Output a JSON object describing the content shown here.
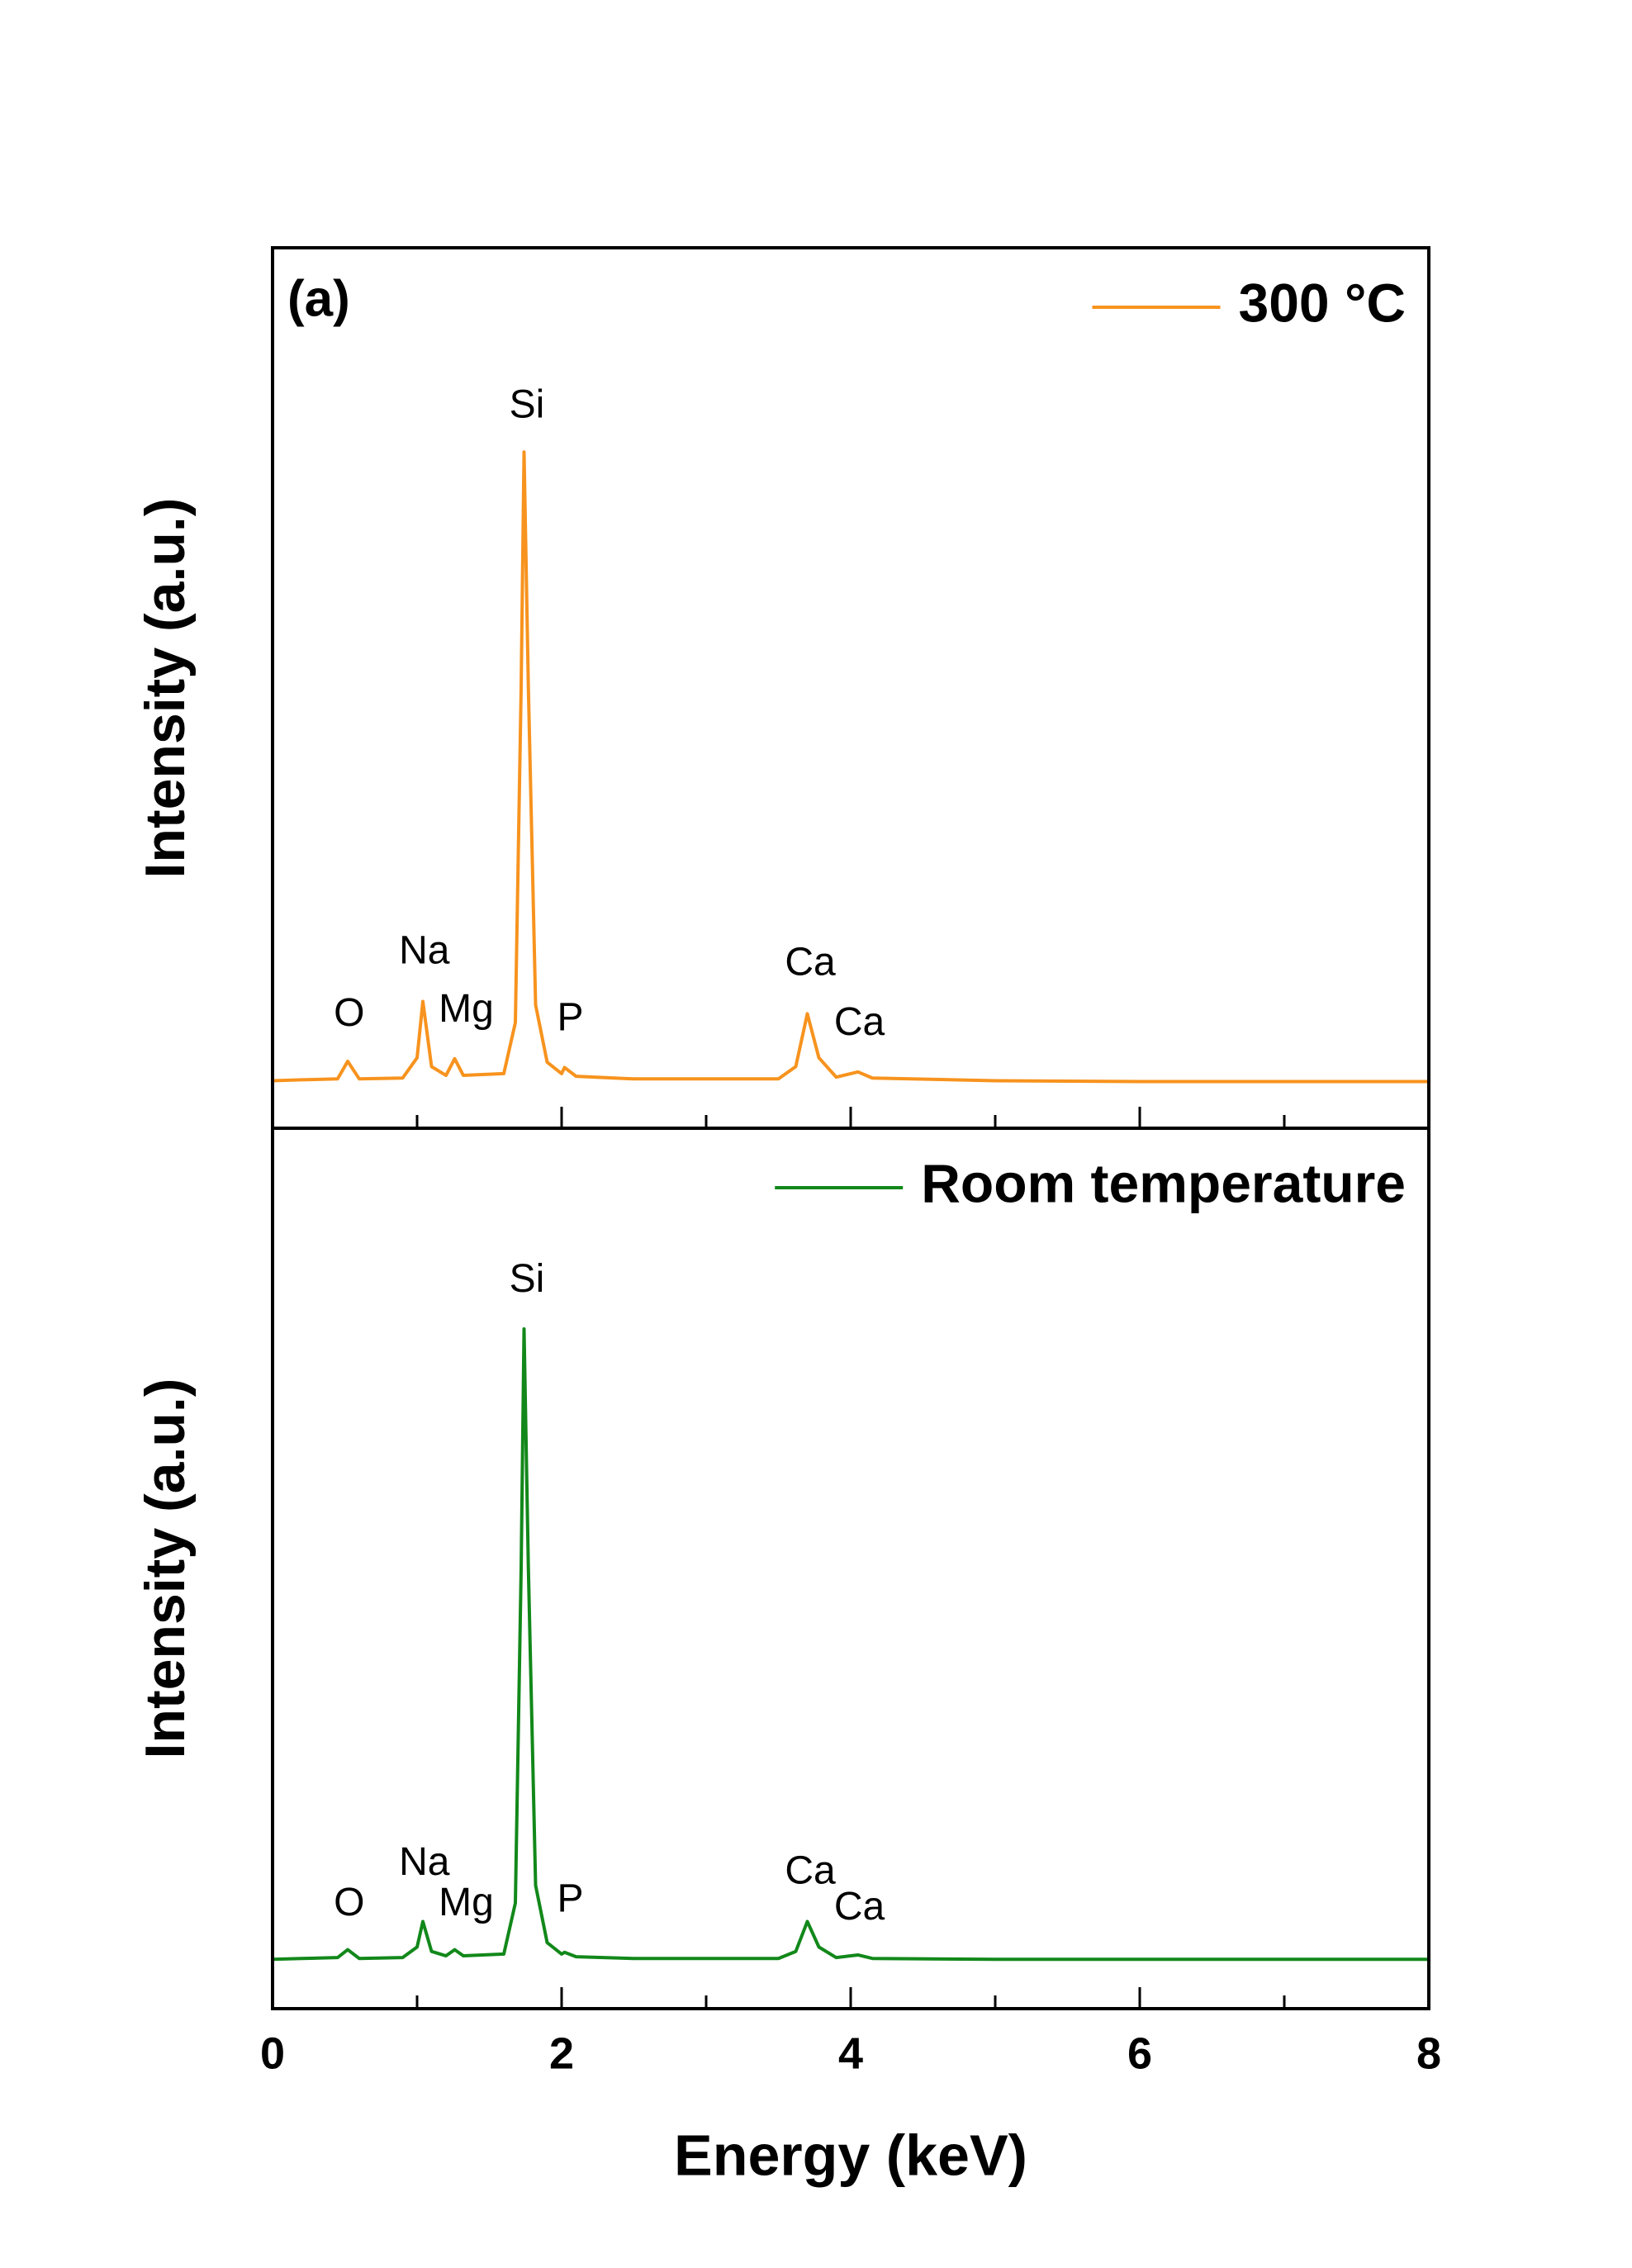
{
  "chart_data": [
    {
      "type": "line",
      "panel_label": "(a)",
      "ylabel": "Intensity (a.u.)",
      "xlim": [
        0,
        8
      ],
      "ylim": [
        0,
        100
      ],
      "xticks": [
        0,
        2,
        4,
        6,
        8
      ],
      "xminorticks": [
        1,
        3,
        5,
        7
      ],
      "legend": "upper right",
      "x": [
        0,
        0.2,
        0.45,
        0.52,
        0.6,
        0.9,
        1.0,
        1.04,
        1.1,
        1.2,
        1.26,
        1.32,
        1.6,
        1.68,
        1.72,
        1.74,
        1.77,
        1.82,
        1.9,
        2.0,
        2.02,
        2.1,
        2.5,
        3.5,
        3.62,
        3.7,
        3.78,
        3.9,
        4.0,
        4.05,
        4.15,
        5,
        6,
        7,
        8
      ],
      "series": [
        {
          "name": "300 °C",
          "color": "#f7931e",
          "values": [
            5.4,
            5.5,
            5.6,
            7.6,
            5.6,
            5.7,
            8,
            14.4,
            7,
            6,
            7.9,
            6,
            6.2,
            12,
            50,
            76.8,
            50,
            14,
            7.5,
            6.2,
            6.9,
            5.9,
            5.6,
            5.6,
            7,
            13,
            8,
            5.8,
            6.2,
            6.4,
            5.7,
            5.4,
            5.3,
            5.3,
            5.3
          ]
        }
      ],
      "annotations": [
        {
          "text": "O",
          "x": 0.53,
          "y": 12.8
        },
        {
          "text": "Na",
          "x": 1.05,
          "y": 19.9
        },
        {
          "text": "Mg",
          "x": 1.34,
          "y": 13.3
        },
        {
          "text": "Si",
          "x": 1.76,
          "y": 81.9
        },
        {
          "text": "P",
          "x": 2.06,
          "y": 12.3
        },
        {
          "text": "Ca",
          "x": 3.72,
          "y": 18.6
        },
        {
          "text": "Ca",
          "x": 4.06,
          "y": 11.8
        }
      ]
    },
    {
      "type": "line",
      "ylabel": "Intensity (a.u.)",
      "xlabel": "Energy (keV)",
      "xlim": [
        0,
        8
      ],
      "ylim": [
        0,
        100
      ],
      "xticks": [
        0,
        2,
        4,
        6,
        8
      ],
      "xminorticks": [
        1,
        3,
        5,
        7
      ],
      "legend": "upper right",
      "x": [
        0,
        0.2,
        0.45,
        0.52,
        0.6,
        0.9,
        1.0,
        1.04,
        1.1,
        1.2,
        1.26,
        1.32,
        1.6,
        1.68,
        1.72,
        1.74,
        1.77,
        1.82,
        1.9,
        2.0,
        2.02,
        2.1,
        2.5,
        3.5,
        3.62,
        3.7,
        3.78,
        3.9,
        4.0,
        4.05,
        4.15,
        5,
        6,
        7,
        8
      ],
      "series": [
        {
          "name": "Room temperature",
          "color": "#12881a",
          "values": [
            5.6,
            5.7,
            5.8,
            6.7,
            5.7,
            5.8,
            7,
            9.9,
            6.5,
            6,
            6.7,
            6,
            6.2,
            12,
            50,
            77.2,
            50,
            14,
            7.5,
            6.2,
            6.4,
            5.9,
            5.7,
            5.7,
            6.5,
            9.9,
            7,
            5.8,
            6,
            6.1,
            5.7,
            5.6,
            5.6,
            5.6,
            5.6
          ]
        }
      ],
      "annotations": [
        {
          "text": "O",
          "x": 0.53,
          "y": 11.8
        },
        {
          "text": "Na",
          "x": 1.05,
          "y": 16.4
        },
        {
          "text": "Mg",
          "x": 1.34,
          "y": 11.8
        },
        {
          "text": "Si",
          "x": 1.76,
          "y": 82.6
        },
        {
          "text": "P",
          "x": 2.06,
          "y": 12.2
        },
        {
          "text": "Ca",
          "x": 3.72,
          "y": 15.4
        },
        {
          "text": "Ca",
          "x": 4.06,
          "y": 11.3
        }
      ]
    }
  ]
}
